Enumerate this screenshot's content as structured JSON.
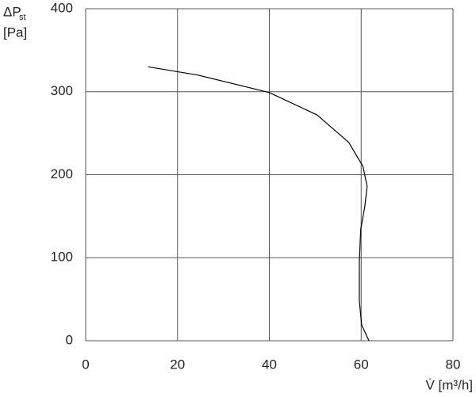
{
  "chart_data": {
    "type": "line",
    "y_label_main": "ΔP",
    "y_label_sub": "st",
    "y_unit": "[Pa]",
    "x_label": "V̇ [m³/h]",
    "x": [
      13.6,
      24.5,
      40,
      50.4,
      57.3,
      60.4,
      61.3,
      60.8,
      59.9,
      59.6,
      59.6,
      60.1,
      61.7
    ],
    "values": [
      330,
      320,
      299,
      272,
      239,
      210,
      186,
      162,
      134,
      95,
      48,
      19,
      0
    ],
    "color": "#000000",
    "xlim": [
      0,
      80
    ],
    "xticks": [
      0,
      20,
      40,
      60,
      80
    ],
    "ylim": [
      0,
      400
    ],
    "yticks": [
      0,
      100,
      200,
      300,
      400
    ],
    "grid": true
  }
}
